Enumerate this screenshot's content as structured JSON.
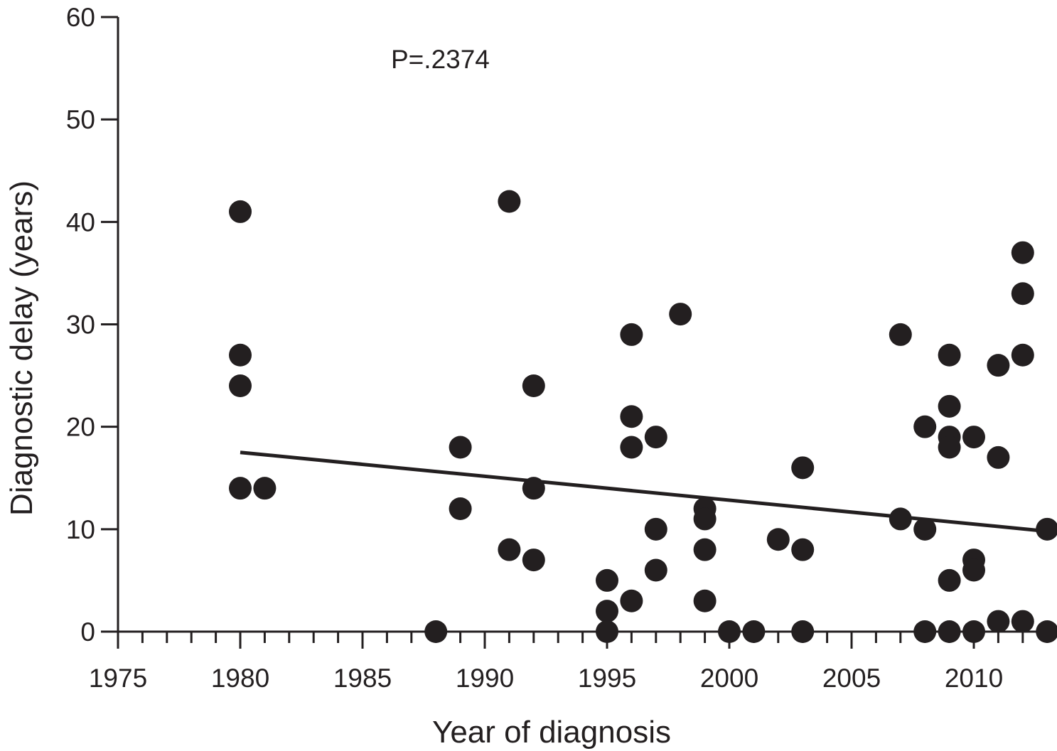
{
  "chart_data": {
    "type": "scatter",
    "title": "",
    "xlabel": "Year of diagnosis",
    "ylabel": "Diagnostic delay (years)",
    "xlim": [
      1975,
      2013
    ],
    "ylim": [
      0,
      60
    ],
    "x_ticks": [
      1975,
      1980,
      1985,
      1990,
      1995,
      2000,
      2005,
      2010
    ],
    "y_ticks": [
      0,
      10,
      20,
      30,
      40,
      50,
      60
    ],
    "annotation": "P=.2374",
    "grid": false,
    "colors": {
      "points": "#231f20",
      "line": "#231f20",
      "axis": "#231f20"
    },
    "series": [
      {
        "points": [
          {
            "x": 1980,
            "y": 41
          },
          {
            "x": 1980,
            "y": 27
          },
          {
            "x": 1980,
            "y": 24
          },
          {
            "x": 1980,
            "y": 14
          },
          {
            "x": 1981,
            "y": 14
          },
          {
            "x": 1988,
            "y": 0
          },
          {
            "x": 1989,
            "y": 18
          },
          {
            "x": 1989,
            "y": 12
          },
          {
            "x": 1991,
            "y": 42
          },
          {
            "x": 1991,
            "y": 8
          },
          {
            "x": 1992,
            "y": 24
          },
          {
            "x": 1992,
            "y": 14
          },
          {
            "x": 1992,
            "y": 7
          },
          {
            "x": 1995,
            "y": 5
          },
          {
            "x": 1995,
            "y": 2
          },
          {
            "x": 1995,
            "y": 0
          },
          {
            "x": 1996,
            "y": 29
          },
          {
            "x": 1996,
            "y": 21
          },
          {
            "x": 1996,
            "y": 18
          },
          {
            "x": 1996,
            "y": 3
          },
          {
            "x": 1997,
            "y": 19
          },
          {
            "x": 1997,
            "y": 10
          },
          {
            "x": 1997,
            "y": 6
          },
          {
            "x": 1998,
            "y": 31
          },
          {
            "x": 1999,
            "y": 12
          },
          {
            "x": 1999,
            "y": 11
          },
          {
            "x": 1999,
            "y": 8
          },
          {
            "x": 1999,
            "y": 3
          },
          {
            "x": 2000,
            "y": 0
          },
          {
            "x": 2001,
            "y": 0
          },
          {
            "x": 2002,
            "y": 9
          },
          {
            "x": 2003,
            "y": 16
          },
          {
            "x": 2003,
            "y": 8
          },
          {
            "x": 2003,
            "y": 0
          },
          {
            "x": 2007,
            "y": 29
          },
          {
            "x": 2007,
            "y": 11
          },
          {
            "x": 2008,
            "y": 20
          },
          {
            "x": 2008,
            "y": 10
          },
          {
            "x": 2008,
            "y": 0
          },
          {
            "x": 2009,
            "y": 27
          },
          {
            "x": 2009,
            "y": 22
          },
          {
            "x": 2009,
            "y": 19
          },
          {
            "x": 2009,
            "y": 18
          },
          {
            "x": 2009,
            "y": 5
          },
          {
            "x": 2009,
            "y": 0
          },
          {
            "x": 2010,
            "y": 19
          },
          {
            "x": 2010,
            "y": 7
          },
          {
            "x": 2010,
            "y": 6
          },
          {
            "x": 2010,
            "y": 0
          },
          {
            "x": 2011,
            "y": 26
          },
          {
            "x": 2011,
            "y": 17
          },
          {
            "x": 2011,
            "y": 1
          },
          {
            "x": 2012,
            "y": 37
          },
          {
            "x": 2012,
            "y": 33
          },
          {
            "x": 2012,
            "y": 27
          },
          {
            "x": 2012,
            "y": 1
          },
          {
            "x": 2013,
            "y": 10
          },
          {
            "x": 2013,
            "y": 0
          }
        ]
      }
    ],
    "trendline": {
      "x": [
        1980,
        2013
      ],
      "y": [
        17.5,
        9.8
      ]
    }
  }
}
